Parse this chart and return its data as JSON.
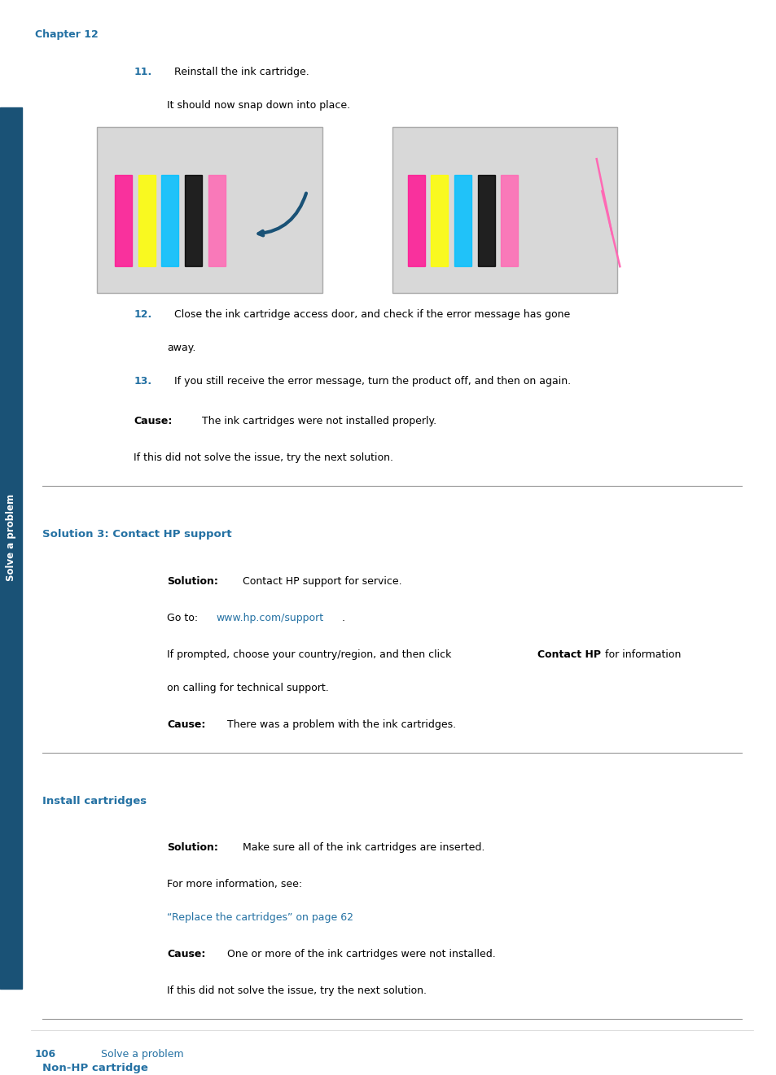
{
  "bg_color": "#ffffff",
  "sidebar_color": "#1a5276",
  "sidebar_text": "Solve a problem",
  "chapter_text": "Chapter 12",
  "chapter_color": "#2471a3",
  "footer_page": "106",
  "footer_text": "Solve a problem",
  "footer_color": "#2471a3",
  "number_color": "#2471a3",
  "heading_color": "#2471a3",
  "link_color": "#2471a3",
  "body_color": "#000000"
}
